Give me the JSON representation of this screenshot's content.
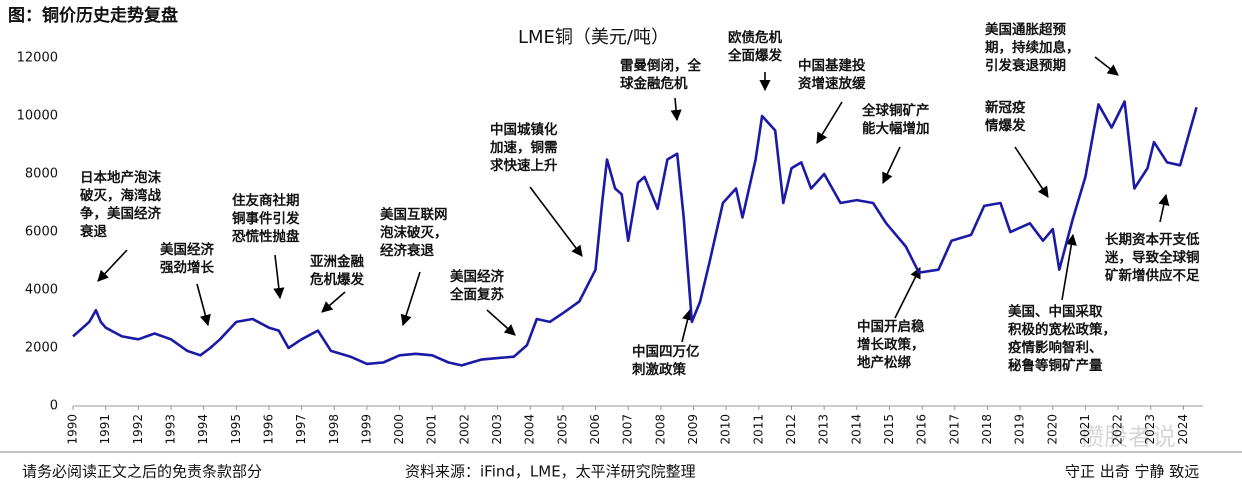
{
  "header": {
    "title": "图：铜价历史走势复盘"
  },
  "chart_data": {
    "type": "line",
    "title": "LME铜（美元/吨）",
    "color": "#1a1aa6",
    "x": [
      1990.0,
      1990.3,
      1990.5,
      1990.7,
      1990.85,
      1991.0,
      1991.5,
      1992.0,
      1992.5,
      1993.0,
      1993.5,
      1993.9,
      1994.2,
      1994.5,
      1995.0,
      1995.5,
      1996.0,
      1996.3,
      1996.6,
      1997.0,
      1997.5,
      1997.9,
      1998.5,
      1999.0,
      1999.5,
      2000.0,
      2000.5,
      2001.0,
      2001.5,
      2001.9,
      2002.5,
      2003.0,
      2003.5,
      2003.9,
      2004.2,
      2004.6,
      2005.0,
      2005.5,
      2006.0,
      2006.2,
      2006.35,
      2006.6,
      2006.8,
      2007.0,
      2007.3,
      2007.5,
      2007.9,
      2008.2,
      2008.5,
      2008.7,
      2008.95,
      2009.2,
      2009.5,
      2009.9,
      2010.3,
      2010.5,
      2010.9,
      2011.1,
      2011.5,
      2011.75,
      2012.0,
      2012.3,
      2012.6,
      2013.0,
      2013.5,
      2014.0,
      2014.5,
      2014.9,
      2015.5,
      2015.9,
      2016.5,
      2016.9,
      2017.5,
      2017.9,
      2018.4,
      2018.7,
      2019.3,
      2019.7,
      2020.0,
      2020.2,
      2020.6,
      2021.0,
      2021.4,
      2021.8,
      2022.2,
      2022.5,
      2022.9,
      2023.1,
      2023.5,
      2023.9,
      2024.2,
      2024.4
    ],
    "values": [
      2400,
      2700,
      2900,
      3300,
      2900,
      2700,
      2400,
      2300,
      2500,
      2300,
      1900,
      1750,
      2000,
      2300,
      2900,
      3000,
      2700,
      2600,
      2000,
      2300,
      2600,
      1900,
      1700,
      1450,
      1500,
      1750,
      1800,
      1750,
      1500,
      1400,
      1600,
      1650,
      1700,
      2100,
      3000,
      2900,
      3200,
      3600,
      4700,
      7000,
      8500,
      7500,
      7300,
      5700,
      7700,
      7900,
      6800,
      8500,
      8700,
      6500,
      2900,
      3600,
      5000,
      7000,
      7500,
      6500,
      8500,
      10000,
      9500,
      7000,
      8200,
      8400,
      7500,
      8000,
      7000,
      7100,
      7000,
      6300,
      5500,
      4600,
      4700,
      5700,
      5900,
      6900,
      7000,
      6000,
      6300,
      5700,
      6100,
      4700,
      6400,
      7900,
      10400,
      9600,
      10500,
      7500,
      8200,
      9100,
      8400,
      8300,
      9500,
      10300
    ],
    "xlim": [
      1990,
      2024.6
    ],
    "xticks": [
      1990,
      1991,
      1992,
      1993,
      1994,
      1995,
      1996,
      1997,
      1998,
      1999,
      2000,
      2001,
      2002,
      2003,
      2004,
      2005,
      2006,
      2007,
      2008,
      2009,
      2010,
      2011,
      2012,
      2013,
      2014,
      2015,
      2016,
      2017,
      2018,
      2019,
      2020,
      2021,
      2022,
      2023,
      2024
    ],
    "ylim": [
      0,
      12000
    ],
    "yticks": [
      0,
      2000,
      4000,
      6000,
      8000,
      10000,
      12000
    ],
    "annotations": [
      {
        "lines": [
          "日本地产泡沫",
          "破灭，海湾战",
          "争，美国经济",
          "衰退"
        ]
      },
      {
        "lines": [
          "美国经济",
          "强劲增长"
        ]
      },
      {
        "lines": [
          "住友商社期",
          "铜事件引发",
          "恐慌性抛盘"
        ]
      },
      {
        "lines": [
          "亚洲金融",
          "危机爆发"
        ]
      },
      {
        "lines": [
          "美国互联网",
          "泡沫破灭，",
          "经济衰退"
        ]
      },
      {
        "lines": [
          "美国经济",
          "全面复苏"
        ]
      },
      {
        "lines": [
          "中国城镇化",
          "加速，铜需",
          "求快速上升"
        ]
      },
      {
        "lines": [
          "雷曼倒闭，全",
          "球金融危机"
        ]
      },
      {
        "lines": [
          "中国四万亿",
          "刺激政策"
        ]
      },
      {
        "lines": [
          "欧债危机",
          "全面爆发"
        ]
      },
      {
        "lines": [
          "中国基建投",
          "资增速放缓"
        ]
      },
      {
        "lines": [
          "全球铜矿产",
          "能大幅增加"
        ]
      },
      {
        "lines": [
          "新冠疫",
          "情爆发"
        ]
      },
      {
        "lines": [
          "美国通胀超预",
          "期，持续加息，",
          "引发衰退预期"
        ]
      },
      {
        "lines": [
          "长期资本开支低",
          "迷，导致全球铜",
          "矿新增供应不足"
        ]
      },
      {
        "lines": [
          "中国开启稳",
          "增长政策，",
          "地产松绑"
        ]
      },
      {
        "lines": [
          "美国、中国采取",
          "积极的宽松政策，",
          "疫情影响智利、",
          "秘鲁等铜矿产量"
        ]
      }
    ]
  },
  "footer": {
    "disclaimer": "请务必阅读正文之后的免责条款部分",
    "source": "资料来源：iFind，LME，太平洋研究院整理",
    "motto": "守正 出奇 宁静 致远"
  },
  "watermark": "攒股者说"
}
